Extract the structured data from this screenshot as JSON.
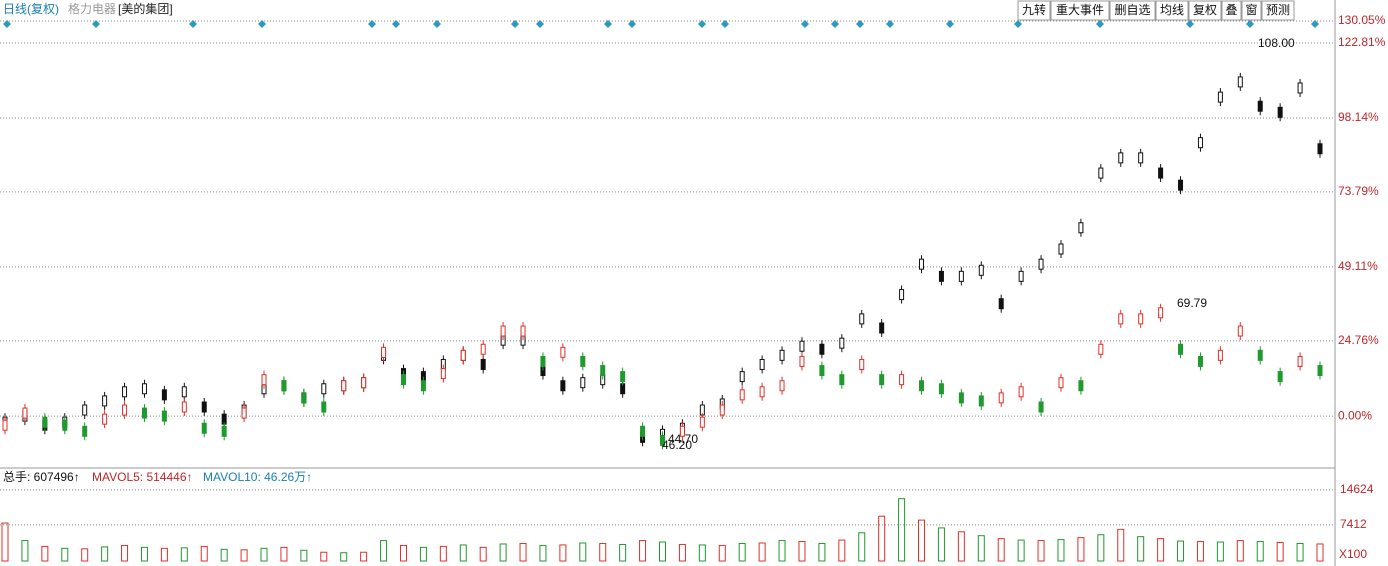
{
  "header": {
    "period": "日线(复权)",
    "main": "格力电器",
    "overlay": "[美的集团]"
  },
  "toolbar": [
    "九转",
    "重大事件",
    "删自选",
    "均线",
    "复权",
    "叠",
    "窗",
    "预测"
  ],
  "chart_data": [
    {
      "type": "candle",
      "ylim": [
        -12.8,
        130.05
      ],
      "yticks": [
        {
          "value": 130.05,
          "label": "130.05%"
        },
        {
          "value": 122.81,
          "label": "122.81%"
        },
        {
          "value": 98.14,
          "label": "98.14%"
        },
        {
          "value": 73.79,
          "label": "73.79%"
        },
        {
          "value": 49.11,
          "label": "49.11%"
        },
        {
          "value": 24.76,
          "label": "24.76%"
        },
        {
          "value": 0,
          "label": "0.00%"
        }
      ],
      "grid": true,
      "up_color": "#e0302a",
      "down_color": "#1f9a2f",
      "series": [
        {
          "name": "格力电器",
          "color": "#111111",
          "values": [
            -2,
            0,
            -3,
            -2,
            2,
            5,
            8,
            9,
            7,
            8,
            3,
            -1,
            2,
            9,
            10,
            6,
            9,
            10,
            11,
            20,
            14,
            13,
            17,
            20,
            17,
            25,
            25,
            15,
            10,
            11,
            12,
            9,
            -7,
            -6,
            -4,
            2,
            4,
            13,
            17,
            20,
            23,
            22,
            24,
            32,
            29,
            40,
            50,
            46,
            46,
            48,
            37,
            46,
            50,
            55,
            62,
            80,
            85,
            85,
            80,
            76,
            90,
            105,
            110,
            102,
            100,
            108,
            88
          ]
        },
        {
          "name": "美的集团",
          "values": [
            -3,
            1,
            -2,
            -3,
            -5,
            -1,
            2,
            1,
            0,
            3,
            -4,
            -5,
            1,
            12,
            10,
            6,
            3,
            10,
            11,
            21,
            12,
            10,
            14,
            20,
            22,
            28,
            28,
            18,
            21,
            18,
            15,
            13,
            -5,
            -8,
            -5,
            -2,
            2,
            7,
            8,
            10,
            18,
            15,
            12,
            17,
            12,
            12,
            10,
            9,
            6,
            5,
            6,
            8,
            3,
            11,
            10,
            22,
            32,
            32,
            34,
            22,
            18,
            20,
            28,
            20,
            13,
            18,
            15
          ]
        }
      ],
      "annotations": [
        "108.00",
        "69.79",
        "44.70",
        "46.20"
      ]
    },
    {
      "type": "volume",
      "title": "总手: 607496↑",
      "mavol5": "MAVOL5: 514446↑",
      "mavol10": "MAVOL10: 46.26万↑",
      "ylim": [
        0,
        18700
      ],
      "yticks": [
        14624,
        7412
      ],
      "unit": "X100",
      "values": [
        7800,
        4200,
        3000,
        2600,
        2500,
        2900,
        3200,
        2800,
        2600,
        2700,
        3000,
        2400,
        2300,
        2600,
        2800,
        2200,
        1800,
        1700,
        1800,
        4200,
        3200,
        2800,
        3000,
        3300,
        2800,
        3500,
        3600,
        3200,
        3300,
        3700,
        3600,
        3400,
        4200,
        3900,
        3400,
        3300,
        3200,
        3600,
        3700,
        4200,
        4000,
        3600,
        4300,
        5800,
        9200,
        12800,
        8400,
        6800,
        6000,
        5200,
        4600,
        4300,
        4200,
        4400,
        4800,
        5400,
        6500,
        5000,
        4600,
        4100,
        4000,
        3900,
        4200,
        4000,
        3800,
        3600,
        3500
      ],
      "color": "#e0302a"
    }
  ]
}
